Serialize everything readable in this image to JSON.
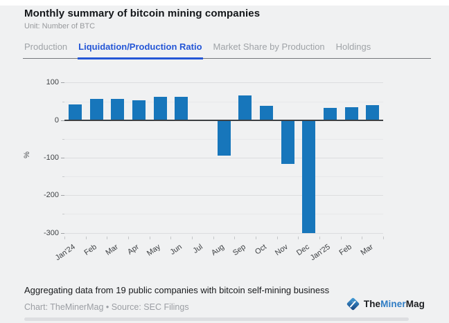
{
  "header": {
    "title": "Monthly summary of bitcoin mining companies",
    "subtitle": "Unit: Number of BTC"
  },
  "tabs": [
    {
      "label": "Production",
      "active": false
    },
    {
      "label": "Liquidation/Production Ratio",
      "active": true
    },
    {
      "label": "Market Share by Production",
      "active": false
    },
    {
      "label": "Holdings",
      "active": false
    }
  ],
  "chart_data": {
    "type": "bar",
    "title": "Monthly summary of bitcoin mining companies",
    "xlabel": "",
    "ylabel": "%",
    "categories": [
      "Jan'24",
      "Feb",
      "Mar",
      "Apr",
      "May",
      "Jun",
      "Jul",
      "Aug",
      "Sep",
      "Oct",
      "Nov",
      "Dec",
      "Jan'25",
      "Feb",
      "Mar"
    ],
    "values": [
      42,
      57,
      57,
      52,
      63,
      63,
      -2,
      -95,
      66,
      38,
      -117,
      -300,
      32,
      35,
      40
    ],
    "yticks": [
      100,
      0,
      -100,
      -200,
      -300
    ],
    "minor_tick_interval": 50,
    "ylim": [
      -310,
      110
    ],
    "grid": true,
    "legend": "none",
    "bar_color": "#1776bb"
  },
  "footer": {
    "note": "Aggregating data from 19 public companies with bitcoin self-mining business",
    "source": "Chart: TheMinerMag • Source: SEC Filings",
    "logo": {
      "the": "The",
      "miner": "Miner",
      "mag": "Mag"
    }
  },
  "colors": {
    "accent_blue": "#2456d6",
    "bar_blue": "#1776bb",
    "panel_background": "#f0f1f2"
  }
}
